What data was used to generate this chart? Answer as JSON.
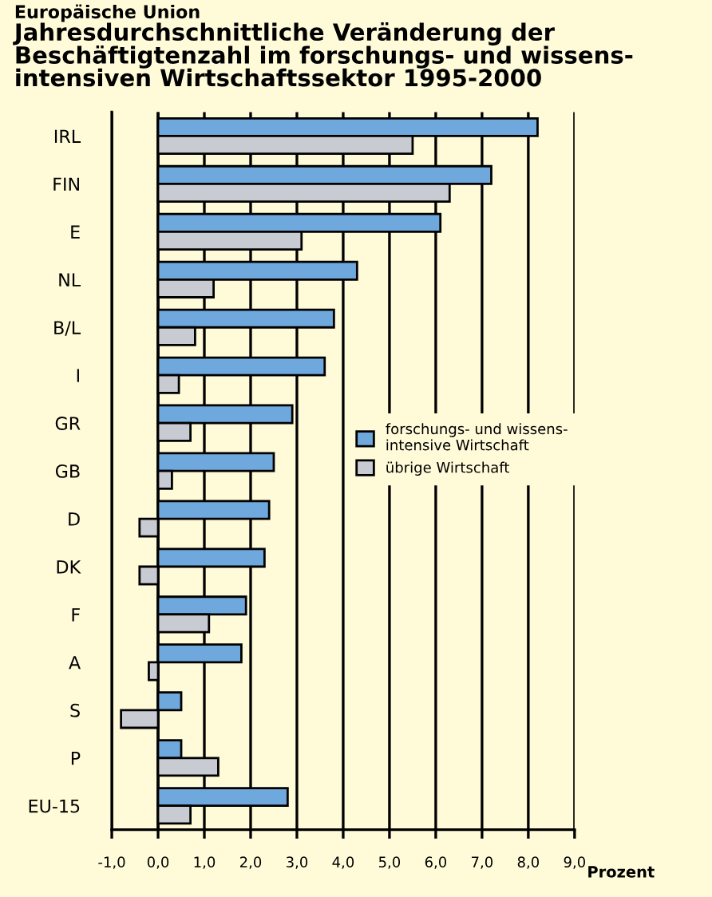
{
  "chart_data": {
    "type": "bar",
    "orientation": "horizontal",
    "subtitle": "Europäische Union",
    "title": "Jahresdurchschnittliche Veränderung der\nBeschäftigtenzahl im forschungs- und wissens-\nintensiven Wirtschaftssektor 1995-2000",
    "xlabel": "Prozent",
    "categories": [
      "IRL",
      "FIN",
      "E",
      "NL",
      "B/L",
      "I",
      "GR",
      "GB",
      "D",
      "DK",
      "F",
      "A",
      "S",
      "P",
      "EU-15"
    ],
    "series": [
      {
        "name": "forschungs- und wissens-\nintensive Wirtschaft",
        "color": "#6fa8dc",
        "values": [
          8.2,
          7.2,
          6.1,
          4.3,
          3.8,
          3.6,
          2.9,
          2.5,
          2.4,
          2.3,
          1.9,
          1.8,
          0.5,
          0.5,
          2.8
        ]
      },
      {
        "name": "übrige Wirtschaft",
        "color": "#c8ccd2",
        "values": [
          5.5,
          6.3,
          3.1,
          1.2,
          0.8,
          0.45,
          0.7,
          0.3,
          -0.4,
          -0.4,
          1.1,
          -0.2,
          -0.8,
          1.3,
          0.7
        ]
      }
    ],
    "xlim": [
      -1,
      9
    ],
    "xticks": [
      {
        "value": -1,
        "label": "-1,0"
      },
      {
        "value": 0,
        "label": "0,0"
      },
      {
        "value": 1,
        "label": "1,0"
      },
      {
        "value": 2,
        "label": "2,0"
      },
      {
        "value": 3,
        "label": "3,0"
      },
      {
        "value": 4,
        "label": "4,0"
      },
      {
        "value": 5,
        "label": "5,0"
      },
      {
        "value": 6,
        "label": "6,0"
      },
      {
        "value": 7,
        "label": "7,0"
      },
      {
        "value": 8,
        "label": "8,0"
      },
      {
        "value": 9,
        "label": "9,0"
      }
    ],
    "grid": "x",
    "legend": "right"
  }
}
